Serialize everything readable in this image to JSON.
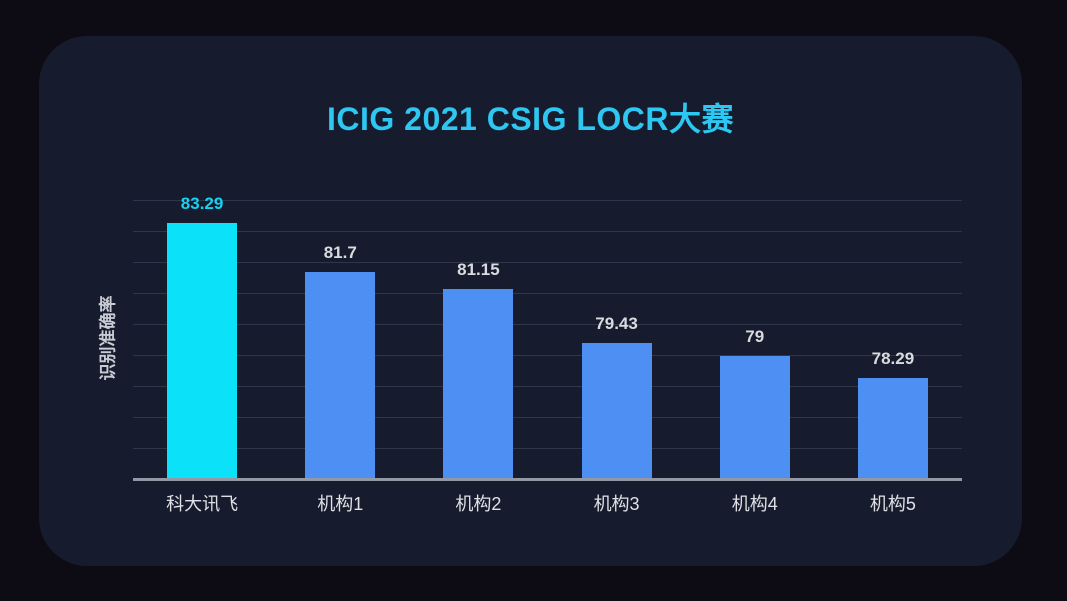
{
  "window": {
    "background": "#0d0b14",
    "card_background": "#161c2d"
  },
  "chart_data": {
    "type": "bar",
    "title": "ICIG 2021 CSIG LOCR大赛",
    "xlabel": "",
    "ylabel": "识别准确率",
    "categories": [
      "科大讯飞",
      "机构1",
      "机构2",
      "机构3",
      "机构4",
      "机构5"
    ],
    "values": [
      83.29,
      81.7,
      81.15,
      79.43,
      79,
      78.29
    ],
    "value_labels": [
      "83.29",
      "81.7",
      "81.15",
      "79.43",
      "79",
      "78.29"
    ],
    "ylim": [
      75,
      84.35
    ],
    "gridline_values": [
      76,
      77,
      78,
      79,
      80,
      81,
      82,
      83,
      84
    ],
    "grid": "horizontal-only",
    "legend_position": "none",
    "highlight_index": 0,
    "colors": {
      "title": "#2ec7f2",
      "highlight_bar": "#0ce1fa",
      "default_bar": "#4d8ff2",
      "highlight_value_label": "#14d2f0",
      "value_label": "#d9dbde",
      "tick_label": "#dfe1e6",
      "y_axis_label": "#c9ccd4",
      "axis_line": "#9298a4",
      "gridline": "#2e364c"
    }
  }
}
